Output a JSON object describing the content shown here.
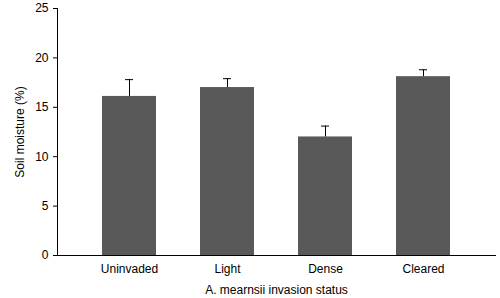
{
  "chart_data": {
    "type": "bar",
    "x_label": "A. mearnsii invasion status",
    "y_label": "Soil moisture (%)",
    "categories": [
      "Uninvaded",
      "Light",
      "Dense",
      "Cleared"
    ],
    "values": [
      16.1,
      17.0,
      12.0,
      18.1
    ],
    "errors": [
      1.7,
      0.9,
      1.1,
      0.7
    ],
    "color": "#595959",
    "ylim": [
      0,
      25
    ],
    "yticks": [
      0,
      5,
      10,
      15,
      20,
      25
    ],
    "grid": false
  }
}
